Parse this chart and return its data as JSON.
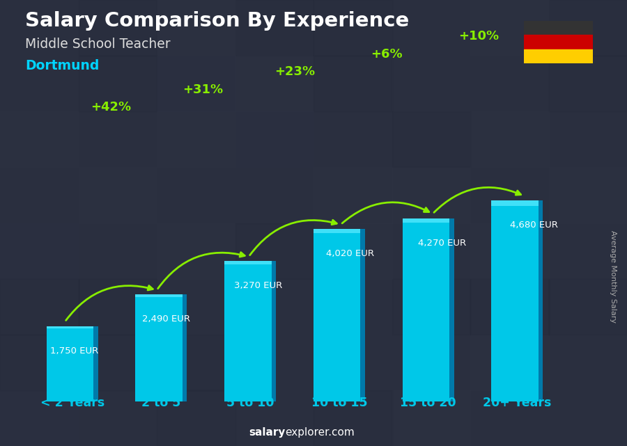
{
  "title": "Salary Comparison By Experience",
  "subtitle": "Middle School Teacher",
  "city": "Dortmund",
  "categories": [
    "< 2 Years",
    "2 to 5",
    "5 to 10",
    "10 to 15",
    "15 to 20",
    "20+ Years"
  ],
  "values": [
    1750,
    2490,
    3270,
    4020,
    4270,
    4680
  ],
  "bar_color_face": "#00c8e8",
  "bar_color_right": "#007aaa",
  "bar_color_highlight": "#40e0f8",
  "pct_labels": [
    "",
    "+42%",
    "+31%",
    "+23%",
    "+6%",
    "+10%"
  ],
  "value_labels": [
    "1,750 EUR",
    "2,490 EUR",
    "3,270 EUR",
    "4,020 EUR",
    "4,270 EUR",
    "4,680 EUR"
  ],
  "ylabel": "Average Monthly Salary",
  "footer_bold": "salary",
  "footer_normal": "explorer.com",
  "bg_color": "#2a2f3f",
  "title_color": "#ffffff",
  "subtitle_color": "#dddddd",
  "city_color": "#00d4ff",
  "pct_color": "#88ee00",
  "value_color": "#ffffff",
  "category_color": "#00c8e8",
  "flag_colors": [
    "#333333",
    "#CC0000",
    "#FFCE00"
  ],
  "ylim_max": 5200
}
